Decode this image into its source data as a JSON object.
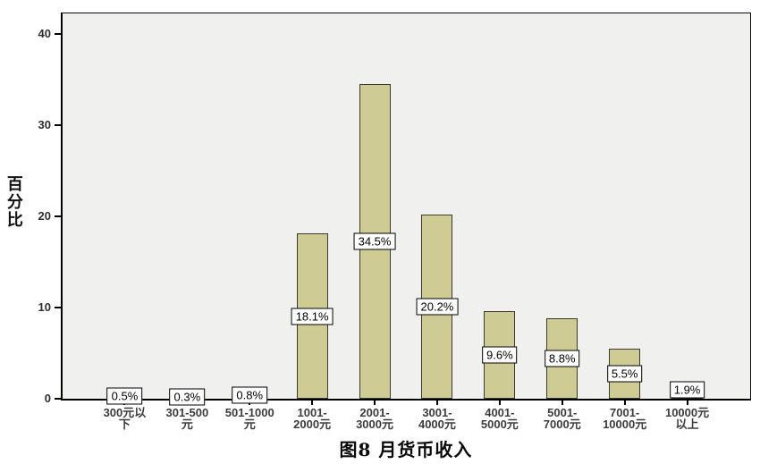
{
  "figure": {
    "title": "图8 月货币收入",
    "y_axis_label": "百分比",
    "colors": {
      "bar_fill": "#cfcb94",
      "bar_border": "#3a3a2c",
      "plot_background": "#f0f0ee",
      "axis": "#000000",
      "label_box_background": "#ffffff",
      "label_box_border": "#000000"
    }
  },
  "chart_data": {
    "type": "bar",
    "title": "图8 月货币收入",
    "xlabel": "",
    "ylabel": "百分比",
    "categories": [
      "300元以下",
      "301-500元",
      "501-1000元",
      "1001-2000元",
      "2001-3000元",
      "3001-4000元",
      "4001-5000元",
      "5001-7000元",
      "7001-10000元",
      "10000元以上"
    ],
    "category_label_lines": [
      "300元以\n下",
      "301-500\n元",
      "501-1000\n元",
      "1001-\n2000元",
      "2001-\n3000元",
      "3001-\n4000元",
      "4001-\n5000元",
      "5001-\n7000元",
      "7001-\n10000元",
      "10000元\n以上"
    ],
    "values": [
      0.5,
      0.3,
      0.8,
      18.1,
      34.5,
      20.2,
      9.6,
      8.8,
      5.5,
      1.9
    ],
    "value_labels": [
      "0.5%",
      "0.3%",
      "0.8%",
      "18.1%",
      "34.5%",
      "20.2%",
      "9.6%",
      "8.8%",
      "5.5%",
      "1.9%"
    ],
    "y_ticks": [
      0,
      10,
      20,
      30,
      40
    ],
    "y_tick_labels": [
      "0",
      "10",
      "20",
      "30",
      "40"
    ],
    "ylim": [
      0,
      42.5
    ],
    "grid": false,
    "legend": false,
    "value_label_position": "center-of-bar"
  }
}
